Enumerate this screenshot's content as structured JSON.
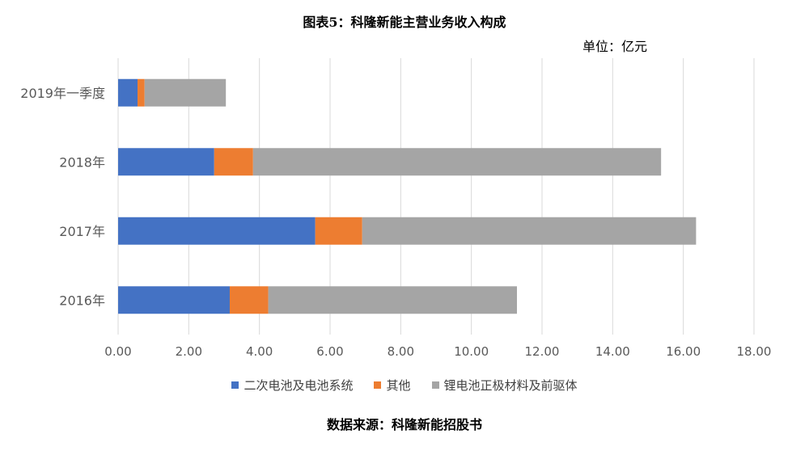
{
  "title": "图表5：科隆新能主营业务收入构成",
  "unit": "单位：亿元",
  "source": "数据来源：科隆新能招股书",
  "chart_data": {
    "type": "bar",
    "orientation": "horizontal",
    "stacked": true,
    "categories": [
      "2019年一季度",
      "2018年",
      "2017年",
      "2016年"
    ],
    "series": [
      {
        "name": "二次电池及电池系统",
        "color": "#4472C4",
        "values": [
          0.55,
          2.72,
          5.58,
          3.16
        ]
      },
      {
        "name": "其他",
        "color": "#ED7D31",
        "values": [
          0.2,
          1.1,
          1.33,
          1.09
        ]
      },
      {
        "name": "锂电池正极材料及前驱体",
        "color": "#A5A5A5",
        "values": [
          2.3,
          11.55,
          9.45,
          7.04
        ]
      }
    ],
    "xlim": [
      0,
      18
    ],
    "x_ticks": [
      "0.00",
      "2.00",
      "4.00",
      "6.00",
      "8.00",
      "10.00",
      "12.00",
      "14.00",
      "16.00",
      "18.00"
    ],
    "grid": true,
    "legend": "bottom"
  }
}
